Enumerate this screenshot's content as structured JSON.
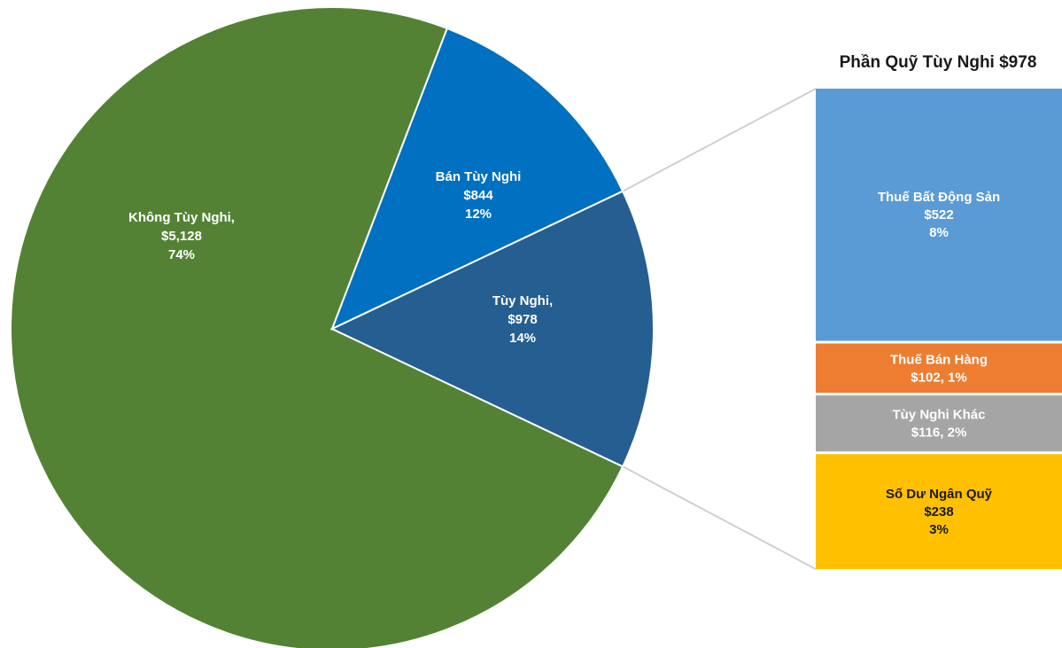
{
  "chart_data": {
    "type": "bar-of-pie",
    "pie": {
      "slices": [
        {
          "name": "Không Tùy Nghi",
          "value": 5128,
          "value_label": "$5,128",
          "percent_label": "74%",
          "color": "#548235",
          "label_color": "#ffffff",
          "name_label": "Không Tùy Nghi,"
        },
        {
          "name": "Bán Tùy Nghi",
          "value": 844,
          "value_label": "$844",
          "percent_label": "12%",
          "color": "#0070C0",
          "label_color": "#ffffff",
          "name_label": "Bán Tùy Nghi"
        },
        {
          "name": "Tùy Nghi",
          "value": 978,
          "value_label": "$978",
          "percent_label": "14%",
          "color": "#255E91",
          "label_color": "#ffffff",
          "name_label": "Tùy Nghi,"
        }
      ]
    },
    "bar": {
      "title": "Phần Quỹ Tùy Nghi $978",
      "segments": [
        {
          "name": "Thuế Bất Động Sản",
          "value": 522,
          "label_lines": [
            "Thuế Bất Động Sản",
            "$522",
            "8%"
          ],
          "color": "#5B9BD5",
          "label_color": "#ffffff"
        },
        {
          "name": "Thuế Bán Hàng",
          "value": 102,
          "label_lines": [
            "Thuế Bán Hàng",
            "$102, 1%"
          ],
          "color": "#ED7D31",
          "label_color": "#ffffff"
        },
        {
          "name": "Tùy Nghi Khác",
          "value": 116,
          "label_lines": [
            "Tùy Nghi Khác",
            "$116, 2%"
          ],
          "color": "#A5A5A5",
          "label_color": "#ffffff"
        },
        {
          "name": "Số Dư Ngân Quỹ",
          "value": 238,
          "label_lines": [
            "Số Dư Ngân Quỹ",
            "$238",
            "3%"
          ],
          "color": "#FFC000",
          "label_color": "#1a1a1a"
        }
      ]
    },
    "connector_color": "#d0d0d0",
    "legend": "none"
  }
}
